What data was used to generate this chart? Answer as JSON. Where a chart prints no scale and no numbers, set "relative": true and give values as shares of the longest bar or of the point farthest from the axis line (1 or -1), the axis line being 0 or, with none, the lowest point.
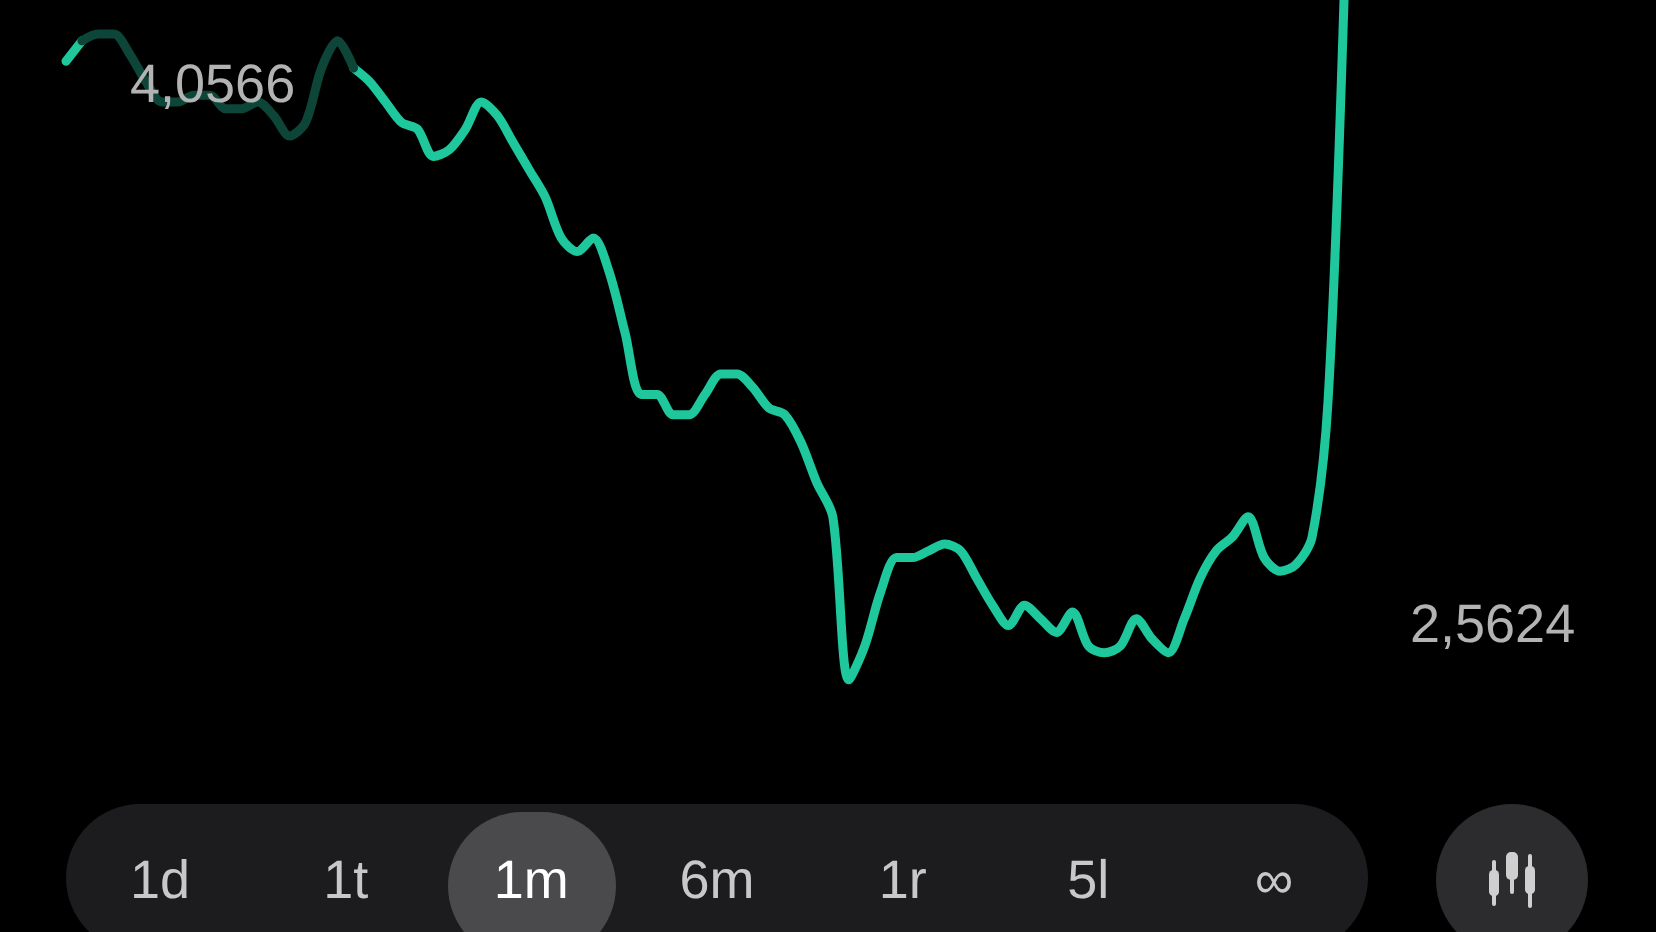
{
  "chart_data": {
    "type": "line",
    "relative": true,
    "categories": [
      null,
      null,
      null,
      null,
      null,
      null,
      null,
      null,
      null,
      null,
      null,
      null,
      null,
      null,
      null,
      null,
      null,
      null,
      null,
      null,
      null,
      null,
      null,
      null,
      null,
      null,
      null,
      null,
      null,
      null,
      null,
      null,
      null,
      null,
      null,
      null,
      null,
      null,
      null,
      null,
      null,
      null,
      null,
      null,
      null,
      null,
      null,
      null,
      null,
      null,
      null,
      null,
      null,
      null,
      null,
      null,
      null,
      null,
      null,
      null,
      null,
      null,
      null,
      null,
      null,
      null,
      null,
      null,
      null,
      null,
      null,
      null,
      null,
      null,
      null,
      null,
      null,
      null,
      null,
      null,
      null
    ],
    "series": [
      {
        "color": "#1fc89c",
        "values": [
          0.91,
          0.94,
          null,
          null,
          null,
          null,
          null,
          null,
          null,
          null,
          null,
          null,
          null,
          null,
          null,
          null,
          null,
          null,
          0.9,
          0.88,
          0.85,
          0.82,
          0.81,
          0.77,
          0.78,
          0.81,
          0.85,
          0.83,
          0.79,
          0.75,
          0.71,
          0.65,
          0.63,
          0.65,
          0.6,
          0.51,
          0.42,
          0.42,
          0.39,
          0.39,
          0.42,
          0.45,
          0.45,
          0.43,
          0.4,
          0.39,
          0.35,
          0.29,
          0.24,
          0,
          0.05,
          0.13,
          0.18,
          0.18,
          0.19,
          0.2,
          0.19,
          0.15,
          0.11,
          0.08,
          0.11,
          0.09,
          0.07,
          0.1,
          0.05,
          0.04,
          0.05,
          0.09,
          0.06,
          0.04,
          0.09,
          0.15,
          0.19,
          0.21,
          0.24,
          0.18,
          0.16,
          0.17,
          0.21,
          0.41,
          1
        ]
      },
      {
        "color": "#0d4538",
        "values": [
          null,
          0.94,
          0.95,
          0.95,
          0.92,
          0.88,
          0.85,
          0.85,
          0.86,
          0.86,
          0.84,
          0.84,
          0.85,
          0.83,
          0.8,
          0.82,
          0.9,
          0.94,
          0.9,
          null,
          null,
          null,
          null,
          null,
          null,
          null,
          null,
          null,
          null,
          null,
          null,
          null,
          null,
          null,
          null,
          null,
          null,
          null,
          null,
          null,
          null,
          null,
          null,
          null,
          null,
          null,
          null,
          null,
          null,
          null,
          null,
          null,
          null,
          null,
          null,
          null,
          null,
          null,
          null,
          null,
          null,
          null,
          null,
          null,
          null,
          null,
          null,
          null,
          null,
          null,
          null,
          null,
          null,
          null,
          null,
          null,
          null,
          null,
          null,
          null,
          null
        ]
      }
    ],
    "annotations": [
      "4,0566",
      "2,5624",
      "1d",
      "1t",
      "1m",
      "6m",
      "1r",
      "5l",
      "∞"
    ]
  }
}
